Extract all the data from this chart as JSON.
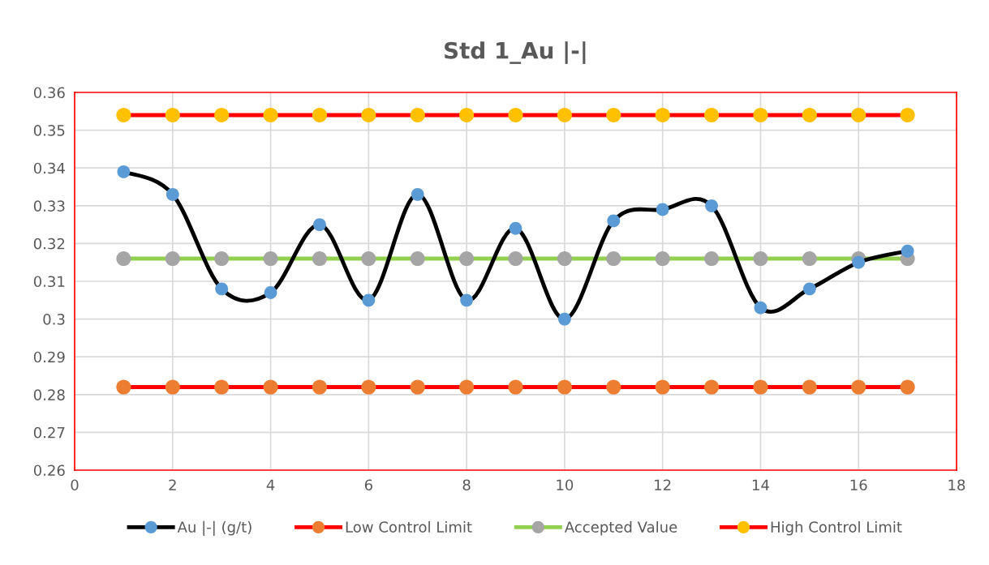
{
  "chart_data": {
    "type": "line",
    "title": "Std 1_Au |-|",
    "x": [
      1,
      2,
      3,
      4,
      5,
      6,
      7,
      8,
      9,
      10,
      11,
      12,
      13,
      14,
      15,
      16,
      17
    ],
    "series": [
      {
        "name": "Au |-| (g/t)",
        "color": "#000000",
        "colors": [
          "#5b9bd5",
          "#5b9bd5",
          "#5b9bd5",
          "#5b9bd5",
          "#5b9bd5",
          "#5b9bd5",
          "#5b9bd5",
          "#5b9bd5",
          "#5b9bd5",
          "#5b9bd5",
          "#5b9bd5",
          "#5b9bd5",
          "#5b9bd5",
          "#5b9bd5",
          "#5b9bd5",
          "#5b9bd5",
          "#5b9bd5"
        ],
        "values": [
          0.339,
          0.333,
          0.308,
          0.307,
          0.325,
          0.305,
          0.333,
          0.305,
          0.324,
          0.3,
          0.326,
          0.329,
          0.33,
          0.303,
          0.308,
          0.315,
          0.318
        ]
      },
      {
        "name": "Low Control Limit",
        "color": "#ff0000",
        "colors": [
          "#ed7d31",
          "#ed7d31",
          "#ed7d31",
          "#ed7d31",
          "#ed7d31",
          "#ed7d31",
          "#ed7d31",
          "#ed7d31",
          "#ed7d31",
          "#ed7d31",
          "#ed7d31",
          "#ed7d31",
          "#ed7d31",
          "#ed7d31",
          "#ed7d31",
          "#ed7d31",
          "#ed7d31"
        ],
        "values": [
          0.282,
          0.282,
          0.282,
          0.282,
          0.282,
          0.282,
          0.282,
          0.282,
          0.282,
          0.282,
          0.282,
          0.282,
          0.282,
          0.282,
          0.282,
          0.282,
          0.282
        ]
      },
      {
        "name": "Accepted Value",
        "color": "#92d050",
        "colors": [
          "#a5a5a5",
          "#a5a5a5",
          "#a5a5a5",
          "#a5a5a5",
          "#a5a5a5",
          "#a5a5a5",
          "#a5a5a5",
          "#a5a5a5",
          "#a5a5a5",
          "#a5a5a5",
          "#a5a5a5",
          "#a5a5a5",
          "#a5a5a5",
          "#a5a5a5",
          "#a5a5a5",
          "#a5a5a5",
          "#a5a5a5"
        ],
        "values": [
          0.316,
          0.316,
          0.316,
          0.316,
          0.316,
          0.316,
          0.316,
          0.316,
          0.316,
          0.316,
          0.316,
          0.316,
          0.316,
          0.316,
          0.316,
          0.316,
          0.316
        ]
      },
      {
        "name": "High Control Limit",
        "color": "#ff0000",
        "colors": [
          "#ffc000",
          "#ffc000",
          "#ffc000",
          "#ffc000",
          "#ffc000",
          "#ffc000",
          "#ffc000",
          "#ffc000",
          "#ffc000",
          "#ffc000",
          "#ffc000",
          "#ffc000",
          "#ffc000",
          "#ffc000",
          "#ffc000",
          "#ffc000",
          "#ffc000"
        ],
        "values": [
          0.354,
          0.354,
          0.354,
          0.354,
          0.354,
          0.354,
          0.354,
          0.354,
          0.354,
          0.354,
          0.354,
          0.354,
          0.354,
          0.354,
          0.354,
          0.354,
          0.354
        ]
      }
    ],
    "xlim": [
      0,
      18
    ],
    "xticks": [
      0,
      2,
      4,
      6,
      8,
      10,
      12,
      14,
      16,
      18
    ],
    "ylim": [
      0.26,
      0.36
    ],
    "yticks": [
      {
        "value": 0.26,
        "label": "0.26"
      },
      {
        "value": 0.27,
        "label": "0.27"
      },
      {
        "value": 0.28,
        "label": "0.28"
      },
      {
        "value": 0.29,
        "label": "0.29"
      },
      {
        "value": 0.3,
        "label": "0.3"
      },
      {
        "value": 0.31,
        "label": "0.31"
      },
      {
        "value": 0.32,
        "label": "0.32"
      },
      {
        "value": 0.33,
        "label": "0.33"
      },
      {
        "value": 0.34,
        "label": "0.34"
      },
      {
        "value": 0.35,
        "label": "0.35"
      },
      {
        "value": 0.36,
        "label": "0.36"
      }
    ],
    "grid": true,
    "legend": "bottom",
    "marker": "circle",
    "line_style": "solid"
  }
}
